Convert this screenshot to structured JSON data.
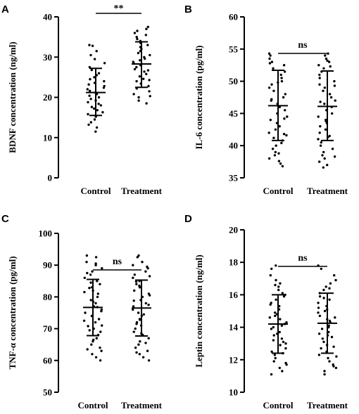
{
  "chart_data": [
    {
      "type": "scatter",
      "panel": "A",
      "ylabel": "BDNF concentration (ng/ml)",
      "categories": [
        "Control",
        "Treatment"
      ],
      "ylim": [
        0,
        40
      ],
      "yticks": [
        "0",
        "10",
        "20",
        "30",
        "40"
      ],
      "significance": "**",
      "summary": [
        {
          "mean": 21.2,
          "sd_low": 15.5,
          "sd_high": 27.2
        },
        {
          "mean": 28.3,
          "sd_low": 22.5,
          "sd_high": 33.8
        }
      ],
      "series": [
        {
          "values": [
            11.5,
            12.5,
            13.2,
            13.8,
            14.5,
            15.2,
            15.8,
            16.3,
            16.8,
            17.2,
            17.6,
            18.0,
            18.4,
            18.8,
            19.2,
            19.6,
            20.0,
            20.4,
            20.8,
            21.2,
            21.6,
            22.0,
            22.4,
            22.8,
            23.2,
            23.6,
            24.0,
            24.5,
            25.0,
            25.5,
            26.0,
            26.8,
            27.5,
            28.5,
            29.5,
            30.5,
            31.5,
            32.8,
            33.0
          ]
        },
        {
          "values": [
            18.5,
            19.2,
            20.0,
            20.8,
            21.5,
            22.2,
            22.8,
            23.4,
            24.0,
            24.6,
            25.2,
            25.8,
            26.4,
            27.0,
            27.5,
            28.0,
            28.4,
            28.8,
            29.2,
            29.6,
            30.0,
            30.5,
            31.0,
            31.5,
            32.0,
            32.5,
            33.0,
            33.5,
            34.0,
            34.5,
            35.0,
            35.5,
            36.0,
            36.5,
            37.0,
            37.5,
            20.3,
            24.3,
            26.7
          ]
        }
      ]
    },
    {
      "type": "scatter",
      "panel": "B",
      "ylabel": "IL-6 concentration (pg/ml)",
      "categories": [
        "Control",
        "Treatment"
      ],
      "ylim": [
        35,
        60
      ],
      "yticks": [
        "35",
        "40",
        "45",
        "50",
        "55",
        "60"
      ],
      "significance": "ns",
      "summary": [
        {
          "mean": 46.2,
          "sd_low": 40.8,
          "sd_high": 51.7
        },
        {
          "mean": 46.1,
          "sd_low": 40.8,
          "sd_high": 51.6
        }
      ],
      "series": [
        {
          "values": [
            36.8,
            37.2,
            37.6,
            38.0,
            38.5,
            39.0,
            39.5,
            40.0,
            40.4,
            40.8,
            41.2,
            41.6,
            42.0,
            42.5,
            43.0,
            43.5,
            44.0,
            44.5,
            45.0,
            45.5,
            46.0,
            46.5,
            47.0,
            47.5,
            48.0,
            48.5,
            49.0,
            49.5,
            50.0,
            50.5,
            51.0,
            51.5,
            52.0,
            52.5,
            53.0,
            53.5,
            54.0,
            54.3,
            38.8,
            41.8,
            44.2,
            47.2,
            49.8,
            52.8
          ]
        },
        {
          "values": [
            36.6,
            37.0,
            37.5,
            38.0,
            38.5,
            39.0,
            39.5,
            40.0,
            40.5,
            41.0,
            41.5,
            42.0,
            42.5,
            43.0,
            43.5,
            44.0,
            44.5,
            45.0,
            45.5,
            46.0,
            46.5,
            47.0,
            47.5,
            48.0,
            48.5,
            49.0,
            49.5,
            50.0,
            50.5,
            51.0,
            51.5,
            52.0,
            52.5,
            53.0,
            53.5,
            54.0,
            54.3,
            38.3,
            41.3,
            43.8,
            46.8,
            49.3,
            52.3,
            53.2
          ]
        }
      ]
    },
    {
      "type": "scatter",
      "panel": "C",
      "ylabel": "TNF-α concentration (pg/ml)",
      "categories": [
        "Control",
        "Treatment"
      ],
      "ylim": [
        50,
        100
      ],
      "yticks": [
        "50",
        "60",
        "70",
        "80",
        "90",
        "100"
      ],
      "significance": "ns",
      "summary": [
        {
          "mean": 76.7,
          "sd_low": 67.8,
          "sd_high": 85.5
        },
        {
          "mean": 76.5,
          "sd_low": 67.7,
          "sd_high": 85.3
        }
      ],
      "series": [
        {
          "values": [
            60.0,
            61.0,
            62.0,
            63.0,
            64.0,
            65.0,
            66.0,
            67.0,
            68.0,
            69.0,
            70.0,
            71.0,
            72.0,
            73.0,
            74.0,
            75.0,
            76.0,
            77.0,
            78.0,
            79.0,
            80.0,
            81.0,
            82.0,
            83.0,
            84.0,
            85.0,
            86.0,
            87.0,
            88.0,
            89.0,
            90.0,
            91.0,
            92.5,
            93.0,
            63.5,
            66.5,
            69.5,
            72.5,
            75.5,
            78.5,
            81.5,
            84.5,
            87.5,
            90.5,
            70.8,
            76.8,
            82.8
          ]
        },
        {
          "values": [
            60.0,
            61.0,
            62.0,
            63.0,
            64.0,
            65.0,
            66.0,
            67.0,
            68.0,
            69.0,
            70.0,
            71.0,
            72.0,
            73.0,
            74.0,
            75.0,
            76.0,
            77.0,
            78.0,
            79.0,
            80.0,
            81.0,
            82.0,
            83.0,
            84.0,
            85.0,
            86.0,
            87.0,
            88.0,
            89.0,
            90.0,
            91.0,
            92.5,
            93.0,
            62.5,
            65.5,
            68.5,
            71.5,
            74.5,
            77.5,
            80.5,
            83.5,
            86.5,
            89.5,
            72.8,
            78.8,
            84.8
          ]
        }
      ]
    },
    {
      "type": "scatter",
      "panel": "D",
      "ylabel": "Leptin concentration (ng/ml)",
      "categories": [
        "Control",
        "Treatment"
      ],
      "ylim": [
        10,
        20
      ],
      "yticks": [
        "10",
        "12",
        "14",
        "16",
        "18",
        "20"
      ],
      "significance": "ns",
      "summary": [
        {
          "mean": 14.2,
          "sd_low": 12.4,
          "sd_high": 16.0
        },
        {
          "mean": 14.25,
          "sd_low": 12.4,
          "sd_high": 16.1
        }
      ],
      "series": [
        {
          "values": [
            11.1,
            11.3,
            11.5,
            11.7,
            11.9,
            12.1,
            12.3,
            12.5,
            12.7,
            12.9,
            13.1,
            13.3,
            13.5,
            13.7,
            13.9,
            14.1,
            14.3,
            14.5,
            14.7,
            14.9,
            15.1,
            15.3,
            15.5,
            15.7,
            15.9,
            16.1,
            16.3,
            16.5,
            16.7,
            16.9,
            17.2,
            17.6,
            17.8,
            11.8,
            12.4,
            13.0,
            13.6,
            14.2,
            14.8,
            15.4,
            16.0,
            16.6,
            13.2,
            14.0,
            14.6
          ]
        },
        {
          "values": [
            11.1,
            11.3,
            11.5,
            11.7,
            11.9,
            12.1,
            12.3,
            12.5,
            12.7,
            12.9,
            13.1,
            13.3,
            13.5,
            13.7,
            13.9,
            14.1,
            14.3,
            14.5,
            14.7,
            14.9,
            15.1,
            15.3,
            15.5,
            15.7,
            15.9,
            16.1,
            16.3,
            16.5,
            16.7,
            16.9,
            17.2,
            17.6,
            17.8,
            11.6,
            12.2,
            12.8,
            13.4,
            14.0,
            14.6,
            15.2,
            15.8,
            16.4,
            13.6,
            14.4,
            15.0
          ]
        }
      ]
    }
  ]
}
